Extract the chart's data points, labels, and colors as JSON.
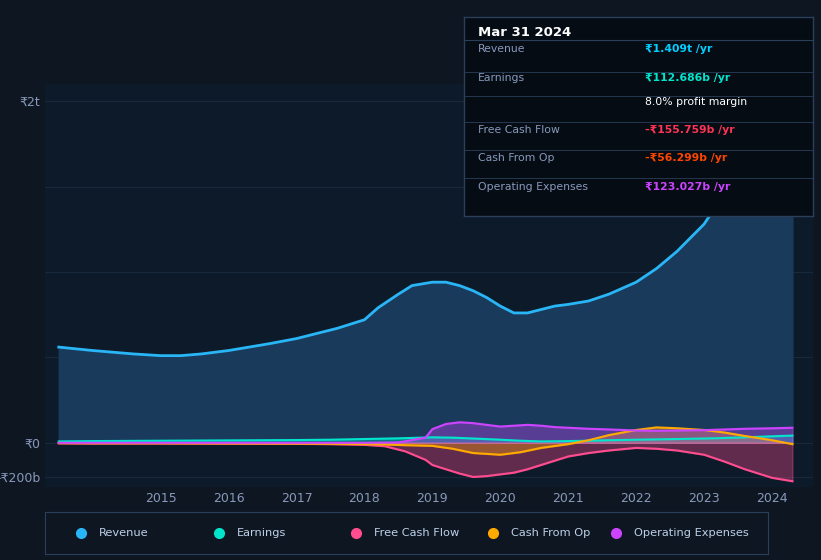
{
  "background_color": "#0e1621",
  "plot_bg_color": "#0d1a2a",
  "grid_color": "#1a2c40",
  "title_box": {
    "date": "Mar 31 2024",
    "rows": [
      {
        "label": "Revenue",
        "value": "₹1.409t /yr",
        "value_color": "#00cfff",
        "bold": true
      },
      {
        "label": "Earnings",
        "value": "₹112.686b /yr",
        "value_color": "#00e5cc",
        "bold": true
      },
      {
        "label": "",
        "value": "8.0% profit margin",
        "value_color": "#ffffff",
        "bold": false
      },
      {
        "label": "Free Cash Flow",
        "value": "-₹155.759b /yr",
        "value_color": "#ff3355",
        "bold": true
      },
      {
        "label": "Cash From Op",
        "value": "-₹56.299b /yr",
        "value_color": "#ff4400",
        "bold": true
      },
      {
        "label": "Operating Expenses",
        "value": "₹123.027b /yr",
        "value_color": "#cc44ff",
        "bold": true
      }
    ],
    "box_bg": "#050c14",
    "label_color": "#8899bb",
    "title_color": "#ffffff"
  },
  "x_labels": [
    "2015",
    "2016",
    "2017",
    "2018",
    "2019",
    "2020",
    "2021",
    "2022",
    "2023",
    "2024"
  ],
  "legend": [
    {
      "label": "Revenue",
      "color": "#29b6f6"
    },
    {
      "label": "Earnings",
      "color": "#00e5cc"
    },
    {
      "label": "Free Cash Flow",
      "color": "#ff4d8f"
    },
    {
      "label": "Cash From Op",
      "color": "#ffaa00"
    },
    {
      "label": "Operating Expenses",
      "color": "#cc44ff"
    }
  ],
  "revenue": {
    "x": [
      2013.5,
      2014.0,
      2014.3,
      2014.6,
      2015.0,
      2015.3,
      2015.6,
      2016.0,
      2016.3,
      2016.6,
      2017.0,
      2017.3,
      2017.6,
      2018.0,
      2018.2,
      2018.5,
      2018.7,
      2019.0,
      2019.2,
      2019.4,
      2019.6,
      2019.8,
      2020.0,
      2020.2,
      2020.4,
      2020.6,
      2020.8,
      2021.0,
      2021.3,
      2021.6,
      2022.0,
      2022.3,
      2022.6,
      2023.0,
      2023.3,
      2023.6,
      2024.0,
      2024.3
    ],
    "y": [
      560,
      540,
      530,
      520,
      510,
      510,
      520,
      540,
      560,
      580,
      610,
      640,
      670,
      720,
      790,
      870,
      920,
      940,
      940,
      920,
      890,
      850,
      800,
      760,
      760,
      780,
      800,
      810,
      830,
      870,
      940,
      1020,
      1120,
      1280,
      1460,
      1660,
      1850,
      1950
    ],
    "color": "#29b6f6",
    "fill_color": "#1a3a5c",
    "lw": 2.0
  },
  "earnings": {
    "x": [
      2013.5,
      2014.0,
      2015.0,
      2016.0,
      2017.0,
      2017.5,
      2018.0,
      2018.5,
      2019.0,
      2019.3,
      2019.6,
      2020.0,
      2020.3,
      2020.6,
      2021.0,
      2021.3,
      2021.6,
      2022.0,
      2022.3,
      2022.6,
      2023.0,
      2023.3,
      2023.6,
      2024.0,
      2024.3
    ],
    "y": [
      8,
      10,
      12,
      14,
      16,
      18,
      22,
      26,
      32,
      30,
      25,
      18,
      12,
      8,
      10,
      12,
      15,
      18,
      20,
      22,
      25,
      28,
      32,
      38,
      42
    ],
    "color": "#00e5cc",
    "lw": 1.5
  },
  "free_cash_flow": {
    "x": [
      2013.5,
      2014.0,
      2015.0,
      2016.0,
      2017.0,
      2017.5,
      2018.0,
      2018.3,
      2018.6,
      2018.9,
      2019.0,
      2019.2,
      2019.4,
      2019.6,
      2019.8,
      2020.0,
      2020.2,
      2020.4,
      2020.6,
      2020.8,
      2021.0,
      2021.3,
      2021.6,
      2022.0,
      2022.3,
      2022.6,
      2023.0,
      2023.3,
      2023.6,
      2024.0,
      2024.3
    ],
    "y": [
      -3,
      -4,
      -4,
      -5,
      -6,
      -8,
      -12,
      -20,
      -50,
      -100,
      -130,
      -155,
      -180,
      -200,
      -195,
      -185,
      -175,
      -155,
      -130,
      -105,
      -80,
      -60,
      -45,
      -30,
      -35,
      -45,
      -70,
      -110,
      -155,
      -205,
      -225
    ],
    "color": "#ff4d8f",
    "lw": 1.5
  },
  "cash_from_op": {
    "x": [
      2013.5,
      2014.0,
      2015.0,
      2016.0,
      2017.0,
      2017.5,
      2018.0,
      2018.3,
      2018.6,
      2019.0,
      2019.3,
      2019.6,
      2020.0,
      2020.3,
      2020.6,
      2021.0,
      2021.3,
      2021.6,
      2022.0,
      2022.3,
      2022.6,
      2023.0,
      2023.3,
      2023.6,
      2024.0,
      2024.3
    ],
    "y": [
      -2,
      -3,
      -3,
      -4,
      -5,
      -6,
      -8,
      -10,
      -14,
      -18,
      -35,
      -60,
      -70,
      -55,
      -30,
      -8,
      15,
      45,
      75,
      90,
      85,
      75,
      60,
      40,
      15,
      -8
    ],
    "color": "#ffaa00",
    "lw": 1.5
  },
  "op_expenses": {
    "x": [
      2013.5,
      2014.0,
      2015.0,
      2016.0,
      2017.0,
      2017.5,
      2018.0,
      2018.5,
      2018.9,
      2019.0,
      2019.2,
      2019.4,
      2019.6,
      2019.8,
      2020.0,
      2020.2,
      2020.4,
      2020.6,
      2020.8,
      2021.0,
      2021.3,
      2021.6,
      2022.0,
      2022.3,
      2022.6,
      2023.0,
      2023.3,
      2023.6,
      2024.0,
      2024.3
    ],
    "y": [
      0,
      0,
      0,
      0,
      0,
      0,
      0,
      2,
      30,
      80,
      110,
      120,
      115,
      105,
      95,
      100,
      105,
      100,
      92,
      88,
      82,
      78,
      72,
      70,
      72,
      74,
      78,
      82,
      85,
      88
    ],
    "color": "#cc44ff",
    "lw": 1.5
  },
  "ylim": [
    -260,
    2100
  ],
  "xlim": [
    2013.3,
    2024.6
  ],
  "yticks": [
    2000,
    0,
    -200
  ],
  "ytick_labels": [
    "₹2t",
    "₹0",
    "-₹200b"
  ]
}
